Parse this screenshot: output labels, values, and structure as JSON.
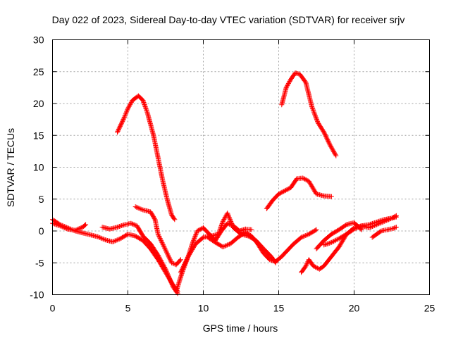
{
  "chart_data": {
    "type": "scatter",
    "title": "Day 022 of 2023, Sidereal Day-to-day VTEC variation (SDTVAR) for receiver srjv",
    "xlabel": "GPS time / hours",
    "ylabel": "SDTVAR / TECUs",
    "xlim": [
      0,
      25
    ],
    "ylim": [
      -10,
      30
    ],
    "xticks": [
      0,
      5,
      10,
      15,
      20,
      25
    ],
    "yticks": [
      -10,
      -5,
      0,
      5,
      10,
      15,
      20,
      25,
      30
    ],
    "grid": true,
    "marker": "plus",
    "color": "#ff0000",
    "series": [
      {
        "x": [
          0,
          0.5,
          1,
          1.5,
          2,
          2.5,
          3,
          3.5,
          4,
          4.5,
          5,
          5.5,
          6,
          6.5,
          7,
          7.5,
          8,
          8.3
        ],
        "y": [
          1.8,
          1.0,
          0.5,
          0.0,
          -0.3,
          -0.6,
          -0.9,
          -1.4,
          -1.7,
          -1.2,
          -0.5,
          -0.8,
          -1.5,
          -2.8,
          -4.5,
          -6.5,
          -8.5,
          -9.5
        ]
      },
      {
        "x": [
          0,
          0.5,
          1,
          1.5,
          2,
          2.2
        ],
        "y": [
          1.2,
          0.8,
          0.3,
          0.1,
          0.6,
          1.0
        ]
      },
      {
        "x": [
          3.3,
          3.8,
          4.3,
          4.8,
          5.2,
          5.6,
          6.0,
          6.5,
          7.0,
          7.5,
          8.0,
          8.3
        ],
        "y": [
          0.6,
          0.3,
          0.6,
          1.0,
          1.2,
          0.8,
          -0.8,
          -2.0,
          -3.8,
          -6.0,
          -8.8,
          -9.8
        ]
      },
      {
        "x": [
          4.3,
          4.7,
          5.0,
          5.3,
          5.7,
          6.0,
          6.3,
          6.7,
          7.0,
          7.3,
          7.6,
          7.9,
          8.1
        ],
        "y": [
          15.5,
          17.5,
          19.2,
          20.5,
          21.2,
          20.5,
          18.5,
          15.0,
          11.5,
          8.0,
          5.0,
          2.5,
          1.8
        ]
      },
      {
        "x": [
          5.5,
          6.0,
          6.5,
          6.8,
          7.0,
          7.3,
          7.6,
          7.9,
          8.2,
          8.5
        ],
        "y": [
          3.8,
          3.3,
          3.0,
          1.8,
          -0.5,
          -2.0,
          -3.5,
          -5.0,
          -5.3,
          -4.5
        ]
      },
      {
        "x": [
          8.2,
          8.6,
          9.0,
          9.5,
          10.0,
          10.5,
          11.0,
          11.3,
          11.6,
          12.0,
          12.5,
          13.0,
          13.5,
          14.0,
          14.5,
          14.8
        ],
        "y": [
          -9.5,
          -6.5,
          -4.0,
          -2.0,
          -1.0,
          -0.8,
          -0.5,
          1.5,
          2.8,
          0.5,
          -0.5,
          -0.8,
          -1.5,
          -2.8,
          -4.0,
          -5.0
        ]
      },
      {
        "x": [
          8.5,
          9.0,
          9.3,
          9.6,
          10.0,
          10.4,
          10.8,
          11.2,
          11.6,
          12.0,
          12.4,
          12.8,
          13.2
        ],
        "y": [
          -6.5,
          -4.0,
          -1.8,
          0.0,
          0.5,
          -0.5,
          -1.5,
          0.0,
          1.2,
          0.8,
          0.0,
          0.3,
          0.2
        ]
      },
      {
        "x": [
          10.3,
          10.8,
          11.3,
          11.8,
          12.3,
          12.8,
          13.2,
          13.6,
          14.0,
          14.4,
          14.8,
          15.2,
          15.6,
          16.0,
          16.5,
          17.0,
          17.5
        ],
        "y": [
          -1.0,
          -1.8,
          -2.5,
          -2.0,
          -1.0,
          -0.2,
          -0.8,
          -2.0,
          -3.5,
          -4.5,
          -4.8,
          -4.0,
          -3.0,
          -2.0,
          -1.0,
          -0.5,
          0.2
        ]
      },
      {
        "x": [
          14.2,
          14.6,
          15.0,
          15.4,
          15.8,
          16.2,
          16.6,
          17.0,
          17.5,
          18.0,
          18.5
        ],
        "y": [
          3.5,
          4.8,
          5.8,
          6.3,
          6.8,
          8.2,
          8.3,
          7.8,
          5.8,
          5.5,
          5.4
        ]
      },
      {
        "x": [
          15.2,
          15.5,
          15.8,
          16.1,
          16.4,
          16.8,
          17.2,
          17.6,
          18.0,
          18.4,
          18.8
        ],
        "y": [
          19.8,
          22.5,
          23.8,
          24.8,
          24.6,
          23.3,
          19.5,
          17.0,
          15.5,
          13.5,
          11.8
        ]
      },
      {
        "x": [
          16.5,
          16.8,
          17.0,
          17.3,
          17.7,
          18.0,
          18.5,
          19.0,
          19.5,
          20.0,
          20.5,
          21.0,
          21.5,
          22.0,
          22.5,
          22.8
        ],
        "y": [
          -6.5,
          -5.5,
          -4.5,
          -5.5,
          -6.0,
          -5.5,
          -4.0,
          -2.5,
          -0.5,
          0.5,
          0.8,
          0.5,
          1.0,
          1.5,
          2.0,
          2.2
        ]
      },
      {
        "x": [
          17.5,
          18.0,
          18.5,
          19.0,
          19.5,
          20.0,
          20.5
        ],
        "y": [
          -2.8,
          -1.5,
          -0.5,
          0.2,
          1.0,
          1.3,
          0.2
        ]
      },
      {
        "x": [
          18.0,
          18.5,
          19.0,
          19.5,
          20.0,
          20.5,
          21.0,
          21.5,
          22.0,
          22.5,
          22.8
        ],
        "y": [
          -2.2,
          -1.8,
          -1.2,
          -0.5,
          0.3,
          0.8,
          1.0,
          1.4,
          1.8,
          2.0,
          2.4
        ]
      },
      {
        "x": [
          21.2,
          21.5,
          21.8,
          22.2,
          22.6,
          22.8
        ],
        "y": [
          -1.0,
          -0.5,
          0.0,
          0.2,
          0.4,
          0.6
        ]
      }
    ]
  }
}
